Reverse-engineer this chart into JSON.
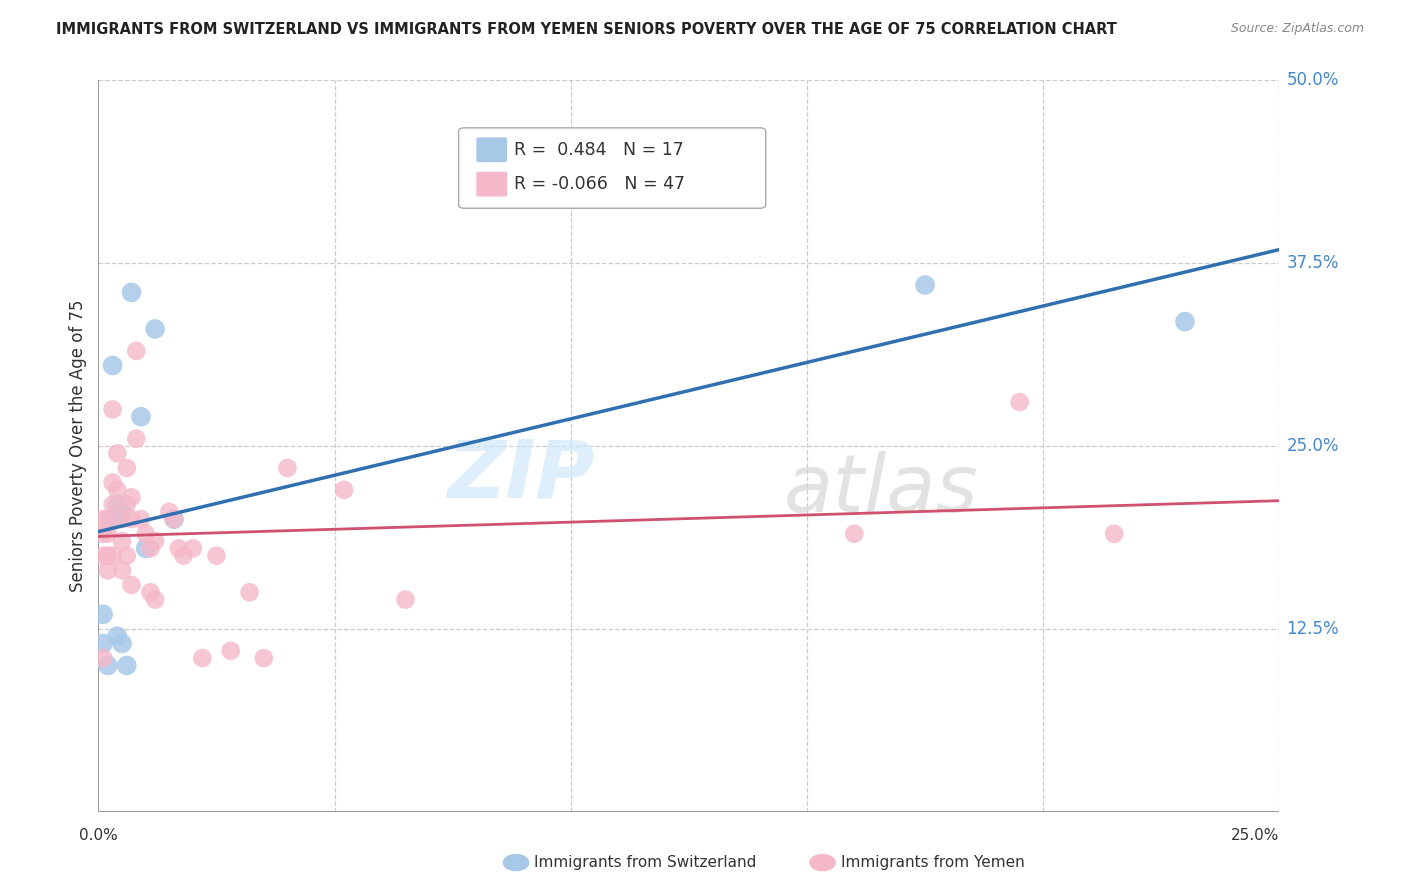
{
  "title": "IMMIGRANTS FROM SWITZERLAND VS IMMIGRANTS FROM YEMEN SENIORS POVERTY OVER THE AGE OF 75 CORRELATION CHART",
  "source": "Source: ZipAtlas.com",
  "ylabel": "Seniors Poverty Over the Age of 75",
  "ytick_labels": [
    "12.5%",
    "25.0%",
    "37.5%",
    "50.0%"
  ],
  "ytick_values": [
    0.125,
    0.25,
    0.375,
    0.5
  ],
  "xlim": [
    0,
    0.25
  ],
  "ylim": [
    0,
    0.5
  ],
  "r_switzerland": 0.484,
  "n_switzerland": 17,
  "r_yemen": -0.066,
  "n_yemen": 47,
  "legend_label_1": "Immigrants from Switzerland",
  "legend_label_2": "Immigrants from Yemen",
  "watermark_zip": "ZIP",
  "watermark_atlas": "atlas",
  "blue_color": "#a8c8e8",
  "pink_color": "#f4b8c8",
  "blue_line_color": "#3070b0",
  "pink_line_color": "#d05070",
  "blue_text_color": "#4488cc",
  "switzerland_x": [
    0.001,
    0.001,
    0.002,
    0.003,
    0.003,
    0.004,
    0.004,
    0.005,
    0.005,
    0.006,
    0.007,
    0.009,
    0.01,
    0.012,
    0.016,
    0.175,
    0.23
  ],
  "switzerland_y": [
    0.135,
    0.115,
    0.1,
    0.2,
    0.305,
    0.21,
    0.12,
    0.205,
    0.115,
    0.1,
    0.355,
    0.27,
    0.18,
    0.33,
    0.2,
    0.36,
    0.335
  ],
  "yemen_x": [
    0.001,
    0.001,
    0.001,
    0.001,
    0.002,
    0.002,
    0.002,
    0.002,
    0.003,
    0.003,
    0.003,
    0.003,
    0.004,
    0.004,
    0.005,
    0.005,
    0.005,
    0.006,
    0.006,
    0.006,
    0.007,
    0.007,
    0.007,
    0.008,
    0.008,
    0.009,
    0.01,
    0.011,
    0.011,
    0.012,
    0.012,
    0.015,
    0.016,
    0.017,
    0.018,
    0.02,
    0.022,
    0.025,
    0.028,
    0.032,
    0.035,
    0.04,
    0.052,
    0.065,
    0.16,
    0.195,
    0.215
  ],
  "yemen_y": [
    0.2,
    0.19,
    0.175,
    0.105,
    0.2,
    0.19,
    0.175,
    0.165,
    0.275,
    0.225,
    0.21,
    0.175,
    0.245,
    0.22,
    0.2,
    0.185,
    0.165,
    0.235,
    0.21,
    0.175,
    0.215,
    0.2,
    0.155,
    0.315,
    0.255,
    0.2,
    0.19,
    0.18,
    0.15,
    0.185,
    0.145,
    0.205,
    0.2,
    0.18,
    0.175,
    0.18,
    0.105,
    0.175,
    0.11,
    0.15,
    0.105,
    0.235,
    0.22,
    0.145,
    0.19,
    0.28,
    0.19
  ]
}
